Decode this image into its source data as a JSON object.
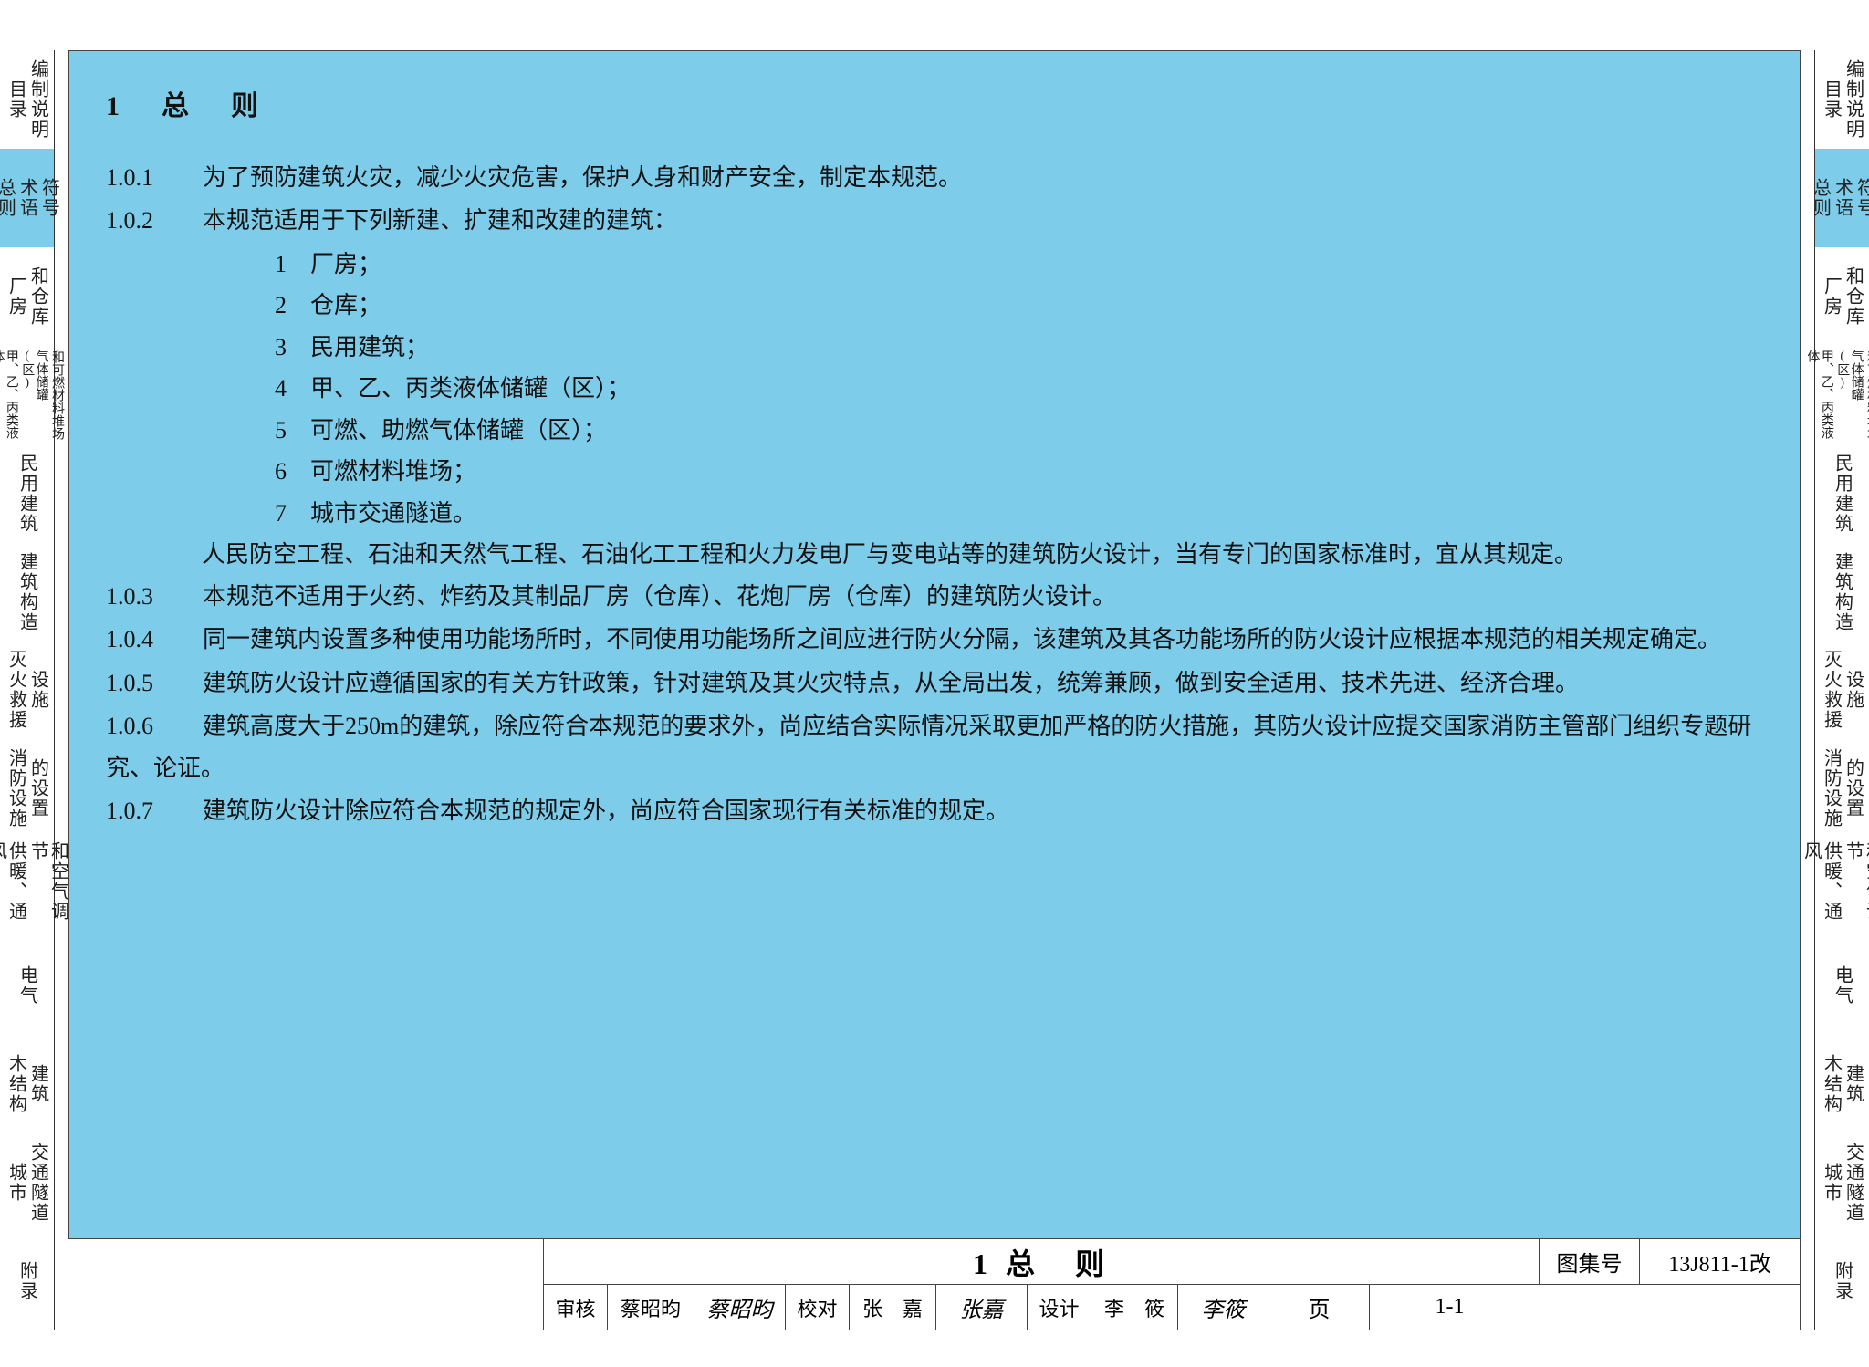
{
  "colors": {
    "content_bg": "#7cccea",
    "page_bg": "#ffffff",
    "text": "#111111",
    "border": "#444444"
  },
  "left_tabs": [
    {
      "cols": [
        "目录",
        "编制说明"
      ],
      "active": false
    },
    {
      "cols": [
        "总则",
        "术语",
        "符号"
      ],
      "active": true
    },
    {
      "cols": [
        "厂房",
        "和仓库"
      ],
      "active": false
    },
    {
      "cols": [
        "甲、乙、丙类液体",
        "气体储罐(区)",
        "和可燃材料堆场"
      ],
      "active": false,
      "small": true
    },
    {
      "cols": [
        "民用建筑"
      ],
      "active": false
    },
    {
      "cols": [
        "建筑构造"
      ],
      "active": false
    },
    {
      "cols": [
        "灭火救援",
        "设施"
      ],
      "active": false
    },
    {
      "cols": [
        "消防设施",
        "的设置"
      ],
      "active": false
    },
    {
      "cols": [
        "供暖、通风",
        "和空气调节"
      ],
      "active": false
    },
    {
      "cols": [
        "电气"
      ],
      "active": false
    },
    {
      "cols": [
        "木结构",
        "建筑"
      ],
      "active": false
    },
    {
      "cols": [
        "城市",
        "交通隧道"
      ],
      "active": false
    },
    {
      "cols": [
        "附录"
      ],
      "active": false
    }
  ],
  "right_tabs": [
    {
      "cols": [
        "目录",
        "编制说明"
      ],
      "active": false
    },
    {
      "cols": [
        "总则",
        "术语",
        "符号"
      ],
      "active": true
    },
    {
      "cols": [
        "厂房",
        "和仓库"
      ],
      "active": false
    },
    {
      "cols": [
        "甲、乙、丙类液体",
        "气体储罐(区)",
        "和可燃材料堆场"
      ],
      "active": false,
      "small": true
    },
    {
      "cols": [
        "民用建筑"
      ],
      "active": false
    },
    {
      "cols": [
        "建筑构造"
      ],
      "active": false
    },
    {
      "cols": [
        "灭火救援",
        "设施"
      ],
      "active": false
    },
    {
      "cols": [
        "消防设施",
        "的设置"
      ],
      "active": false
    },
    {
      "cols": [
        "供暖、通风",
        "和空气调节"
      ],
      "active": false
    },
    {
      "cols": [
        "电气"
      ],
      "active": false
    },
    {
      "cols": [
        "木结构",
        "建筑"
      ],
      "active": false
    },
    {
      "cols": [
        "城市",
        "交通隧道"
      ],
      "active": false
    },
    {
      "cols": [
        "附录"
      ],
      "active": false
    }
  ],
  "content": {
    "heading": "1　总　则",
    "clauses": [
      {
        "num": "1.0.1",
        "text": "为了预防建筑火灾，减少火灾危害，保护人身和财产安全，制定本规范。"
      },
      {
        "num": "1.0.2",
        "text": "本规范适用于下列新建、扩建和改建的建筑："
      }
    ],
    "sublist": [
      "1　厂房；",
      "2　仓库；",
      "3　民用建筑；",
      "4　甲、乙、丙类液体储罐（区）；",
      "5　可燃、助燃气体储罐（区）；",
      "6　可燃材料堆场；",
      "7　城市交通隧道。"
    ],
    "note": "人民防空工程、石油和天然气工程、石油化工工程和火力发电厂与变电站等的建筑防火设计，当有专门的国家标准时，宜从其规定。",
    "clauses2": [
      {
        "num": "1.0.3",
        "text": "本规范不适用于火药、炸药及其制品厂房（仓库）、花炮厂房（仓库）的建筑防火设计。"
      },
      {
        "num": "1.0.4",
        "text": "同一建筑内设置多种使用功能场所时，不同使用功能场所之间应进行防火分隔，该建筑及其各功能场所的防火设计应根据本规范的相关规定确定。"
      },
      {
        "num": "1.0.5",
        "text": "建筑防火设计应遵循国家的有关方针政策，针对建筑及其火灾特点，从全局出发，统筹兼顾，做到安全适用、技术先进、经济合理。"
      },
      {
        "num": "1.0.6",
        "text": "建筑高度大于250m的建筑，除应符合本规范的要求外，尚应结合实际情况采取更加严格的防火措施，其防火设计应提交国家消防主管部门组织专题研究、论证。"
      },
      {
        "num": "1.0.7",
        "text": "建筑防火设计除应符合本规范的规定外，尚应符合国家现行有关标准的规定。"
      }
    ]
  },
  "titleblock": {
    "title": "1 总　则",
    "set_label": "图集号",
    "set_value": "13J811-1改",
    "page_label": "页",
    "page_value": "1-1",
    "review_label": "审核",
    "reviewer": "蔡昭昀",
    "reviewer_sig": "蔡昭昀",
    "check_label": "校对",
    "checker": "张　嘉",
    "checker_sig": "张嘉",
    "design_label": "设计",
    "designer": "李　筱",
    "designer_sig": "李筱"
  }
}
